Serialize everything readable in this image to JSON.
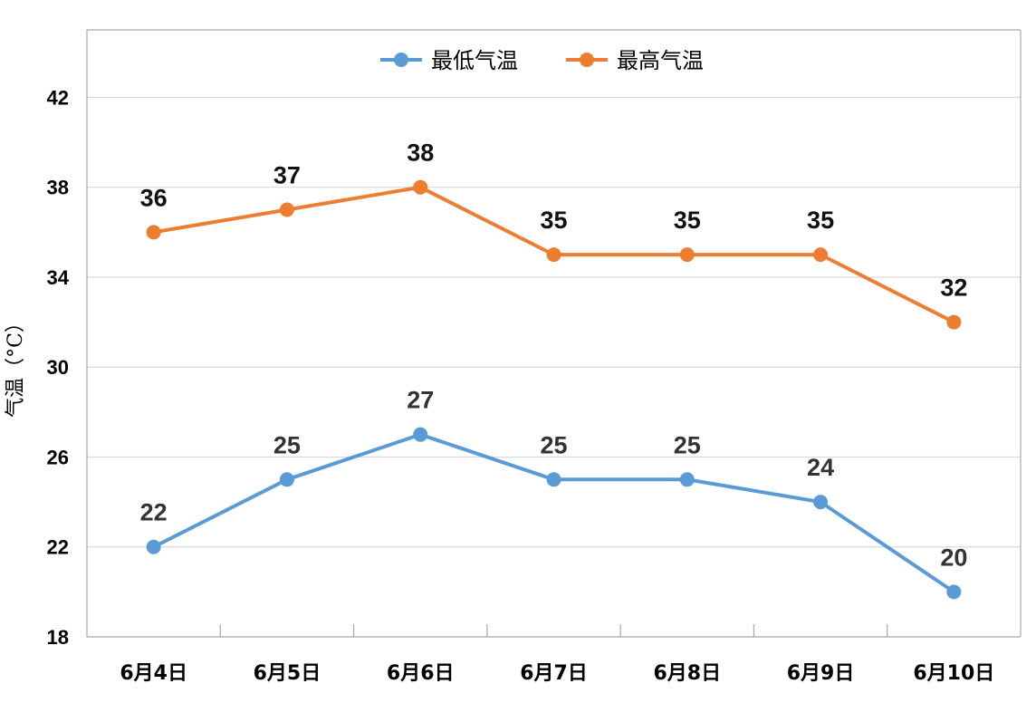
{
  "chart_data": {
    "type": "line",
    "title": "",
    "xlabel": "",
    "ylabel": "气温（°C）",
    "categories": [
      "6月4日",
      "6月5日",
      "6月6日",
      "6月7日",
      "6月8日",
      "6月9日",
      "6月10日"
    ],
    "ylim": [
      18,
      45
    ],
    "yticks": [
      18,
      22,
      26,
      30,
      34,
      38,
      42
    ],
    "grid": true,
    "legend_position": "top-center",
    "series": [
      {
        "name": "最低气温",
        "color": "#5B9BD5",
        "values": [
          22,
          25,
          27,
          25,
          25,
          24,
          20
        ]
      },
      {
        "name": "最高气温",
        "color": "#ED7D31",
        "values": [
          36,
          37,
          38,
          35,
          35,
          35,
          32
        ]
      }
    ]
  }
}
